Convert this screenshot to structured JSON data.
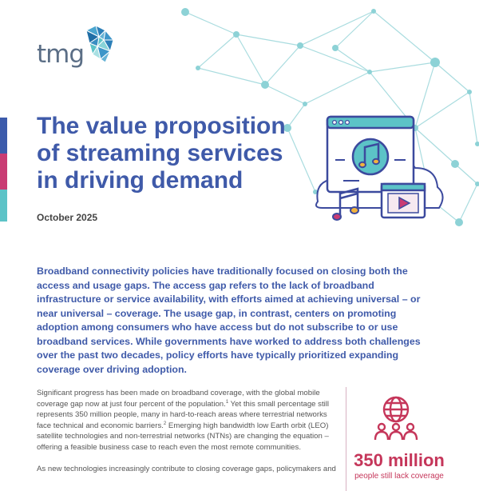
{
  "brand": {
    "logo_text": "tmg",
    "colors": {
      "blue": "#3f5aa9",
      "pink": "#c5365a",
      "teal": "#5cc3c7",
      "gray": "#5b6e86"
    }
  },
  "document": {
    "title_lines": [
      "The value proposition",
      "of streaming services",
      "in driving demand"
    ],
    "date": "October 2025"
  },
  "intro": {
    "text": "Broadband connectivity policies have traditionally focused on closing both the access and usage gaps. The access gap refers to the lack of broadband infrastructure or service availability, with efforts aimed at achieving universal – or near universal – coverage. The usage gap, in contrast, centers on promoting adoption among consumers who have access but do not subscribe to or use broadband services. While governments have worked to address both challenges over the past two decades, policy efforts have typically prioritized expanding coverage over driving adoption."
  },
  "body": {
    "p1": {
      "a": "Significant progress has been made on broadband coverage, with the global mobile coverage gap now at just four percent of the population.",
      "fn1": "1",
      "b": " Yet this small percentage still represents 350 million people, many in hard-to-reach areas where terrestrial networks face technical and economic barriers.",
      "fn2": "2",
      "c": " Emerging high bandwidth low Earth orbit (LEO) satellite technologies and non-terrestrial networks (NTNs) are changing the equation – offering a feasible business case to reach even the most remote communities."
    },
    "p2": "As new technologies increasingly contribute to closing coverage gaps, policymakers and"
  },
  "stat": {
    "icon": "globe-people-icon",
    "value": "350 million",
    "caption": "people still lack coverage"
  },
  "illustration": {
    "icons": [
      "browser-window-icon",
      "music-note-icon",
      "music-notes-icon",
      "video-play-icon",
      "cloud-icon"
    ]
  }
}
